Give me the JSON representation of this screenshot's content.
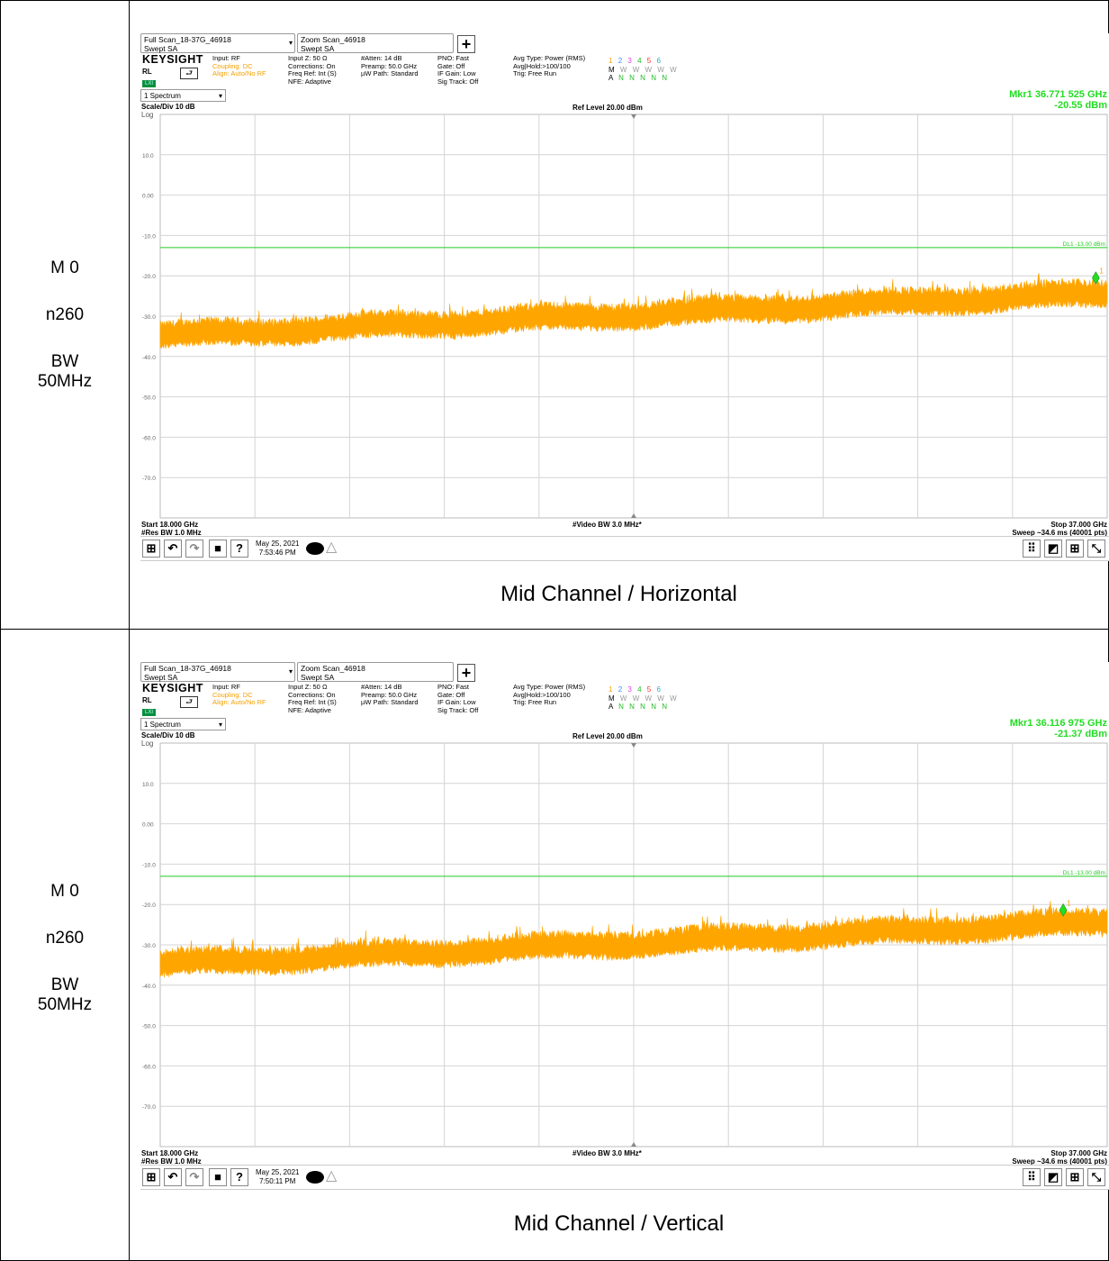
{
  "rows": [
    {
      "labels": {
        "mode": "M 0",
        "band": "n260",
        "bw_label": "BW",
        "bw_value": "50MHz"
      },
      "caption": "Mid Channel / Horizontal",
      "analyzer": {
        "tab1": {
          "line1": "Full Scan_18-37G_46918",
          "line2": "Swept SA"
        },
        "tab2": {
          "line1": "Zoom Scan_46918",
          "line2": "Swept SA"
        },
        "plus": "+",
        "brand": "KEYSIGHT",
        "rl": "RL",
        "lxi": "LXI",
        "info": {
          "c1": [
            "Input: RF",
            "Coupling: DC",
            "Align: Auto/No RF"
          ],
          "c2": [
            "Input Z: 50 Ω",
            "Corrections: On",
            "Freq Ref: Int (S)",
            "NFE: Adaptive"
          ],
          "c3": [
            "#Atten: 14 dB",
            "Preamp: 50.0 GHz",
            "µW Path: Standard"
          ],
          "c4": [
            "PNO: Fast",
            "Gate: Off",
            "IF Gain: Low",
            "Sig Track: Off"
          ],
          "c5": [
            "Avg Type: Power (RMS)",
            "Avg|Hold:>100/100",
            "Trig: Free Run"
          ]
        },
        "traces": {
          "nums": [
            "1",
            "2",
            "3",
            "4",
            "5",
            "6"
          ],
          "types": [
            "M",
            "W",
            "W",
            "W",
            "W",
            "W"
          ],
          "dets": [
            "A",
            "N",
            "N",
            "N",
            "N",
            "N"
          ]
        },
        "window": "1 Spectrum",
        "scale_div": "Scale/Div 10 dB",
        "log": "Log",
        "ref_level": "Ref Level 20.00 dBm",
        "marker": {
          "freq": "Mkr1  36.771 525 GHz",
          "level": "-20.55 dBm"
        },
        "start": "Start 18.000 GHz",
        "res_bw": "#Res BW 1.0 MHz",
        "video_bw": "#Video BW 3.0 MHz*",
        "stop": "Stop 37.000 GHz",
        "sweep": "Sweep ~34.6 ms (40001 pts)",
        "date": "May 25, 2021",
        "time": "7:53:46 PM",
        "dl_label": "DL1 -13.00 dBm",
        "marker_tag": "1"
      },
      "chart_data": {
        "type": "line",
        "xlim_ghz": [
          18.0,
          37.0
        ],
        "ylim_dbm": [
          -80,
          20
        ],
        "y_ticks": [
          "10.0",
          "0.00",
          "-10.0",
          "-20.0",
          "-30.0",
          "-40.0",
          "-50.0",
          "-60.0",
          "-70.0"
        ],
        "display_line_dbm": -13.0,
        "marker": {
          "x_ghz": 36.771525,
          "y_dbm": -20.55
        },
        "trace_level_dbm": {
          "start": -35,
          "end": -24.5
        },
        "trace_color": "#ffa500",
        "grid": true
      }
    },
    {
      "labels": {
        "mode": "M 0",
        "band": "n260",
        "bw_label": "BW",
        "bw_value": "50MHz"
      },
      "caption": "Mid Channel / Vertical",
      "analyzer": {
        "tab1": {
          "line1": "Full Scan_18-37G_46918",
          "line2": "Swept SA"
        },
        "tab2": {
          "line1": "Zoom Scan_46918",
          "line2": "Swept SA"
        },
        "plus": "+",
        "brand": "KEYSIGHT",
        "rl": "RL",
        "lxi": "LXI",
        "info": {
          "c1": [
            "Input: RF",
            "Coupling: DC",
            "Align: Auto/No RF"
          ],
          "c2": [
            "Input Z: 50 Ω",
            "Corrections: On",
            "Freq Ref: Int (S)",
            "NFE: Adaptive"
          ],
          "c3": [
            "#Atten: 14 dB",
            "Preamp: 50.0 GHz",
            "µW Path: Standard"
          ],
          "c4": [
            "PNO: Fast",
            "Gate: Off",
            "IF Gain: Low",
            "Sig Track: Off"
          ],
          "c5": [
            "Avg Type: Power (RMS)",
            "Avg|Hold:>100/100",
            "Trig: Free Run"
          ]
        },
        "traces": {
          "nums": [
            "1",
            "2",
            "3",
            "4",
            "5",
            "6"
          ],
          "types": [
            "M",
            "W",
            "W",
            "W",
            "W",
            "W"
          ],
          "dets": [
            "A",
            "N",
            "N",
            "N",
            "N",
            "N"
          ]
        },
        "window": "1 Spectrum",
        "scale_div": "Scale/Div 10 dB",
        "log": "Log",
        "ref_level": "Ref Level 20.00 dBm",
        "marker": {
          "freq": "Mkr1  36.116 975 GHz",
          "level": "-21.37 dBm"
        },
        "start": "Start 18.000 GHz",
        "res_bw": "#Res BW 1.0 MHz",
        "video_bw": "#Video BW 3.0 MHz*",
        "stop": "Stop 37.000 GHz",
        "sweep": "Sweep ~34.6 ms (40001 pts)",
        "date": "May 25, 2021",
        "time": "7:50:11 PM",
        "dl_label": "DL1 -13.00 dBm",
        "marker_tag": "1"
      },
      "chart_data": {
        "type": "line",
        "xlim_ghz": [
          18.0,
          37.0
        ],
        "ylim_dbm": [
          -80,
          20
        ],
        "y_ticks": [
          "10.0",
          "0.00",
          "-10.0",
          "-20.0",
          "-30.0",
          "-40.0",
          "-50.0",
          "-60.0",
          "-70.0"
        ],
        "display_line_dbm": -13.0,
        "marker": {
          "x_ghz": 36.116975,
          "y_dbm": -21.37
        },
        "trace_level_dbm": {
          "start": -35,
          "end": -24.5
        },
        "trace_color": "#ffa500",
        "grid": true
      }
    }
  ]
}
